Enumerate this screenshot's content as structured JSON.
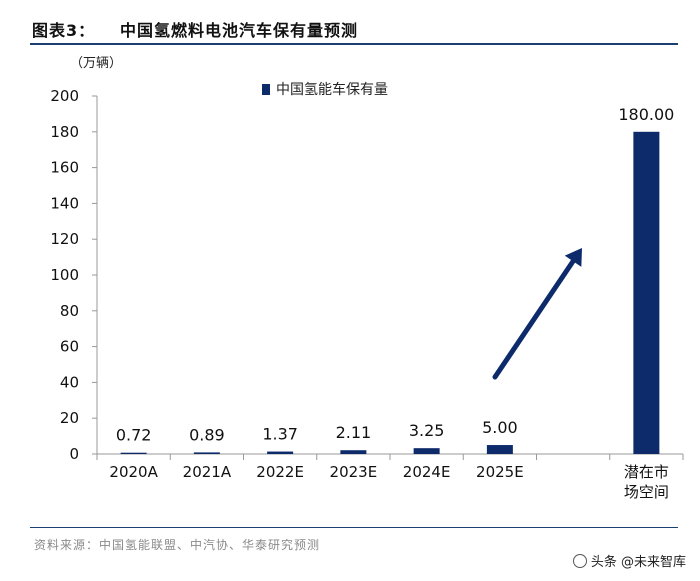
{
  "figure": {
    "label": "图表3：",
    "title": "中国氢燃料电池汽车保有量预测",
    "unit": "（万辆）",
    "source": "资料来源：中国氢能联盟、中汽协、华泰研究预测",
    "watermark": "头条 @未来智库"
  },
  "chart_data": {
    "type": "bar",
    "categories": [
      "2020A",
      "2021A",
      "2022E",
      "2023E",
      "2024E",
      "2025E",
      "",
      "潜在市场空间"
    ],
    "category_lines": [
      [
        "2020A"
      ],
      [
        "2021A"
      ],
      [
        "2022E"
      ],
      [
        "2023E"
      ],
      [
        "2024E"
      ],
      [
        "2025E"
      ],
      [
        ""
      ],
      [
        "潜在市",
        "场空间"
      ]
    ],
    "series": [
      {
        "name": "中国氢能车保有量",
        "values": [
          0.72,
          0.89,
          1.37,
          2.11,
          3.25,
          5.0,
          null,
          180.0
        ],
        "labels": [
          "0.72",
          "0.89",
          "1.37",
          "2.11",
          "3.25",
          "5.00",
          "",
          "180.00"
        ]
      }
    ],
    "ylim": [
      0,
      200
    ],
    "yticks": [
      0,
      20,
      40,
      60,
      80,
      100,
      120,
      140,
      160,
      180,
      200
    ],
    "legend_position": "top",
    "grid": false,
    "colors": {
      "bar": "#0d2a6b",
      "arrow": "#0d2a6b",
      "axis": "#999999"
    },
    "annotation": "growth arrow from 2025E toward potential market bar"
  }
}
